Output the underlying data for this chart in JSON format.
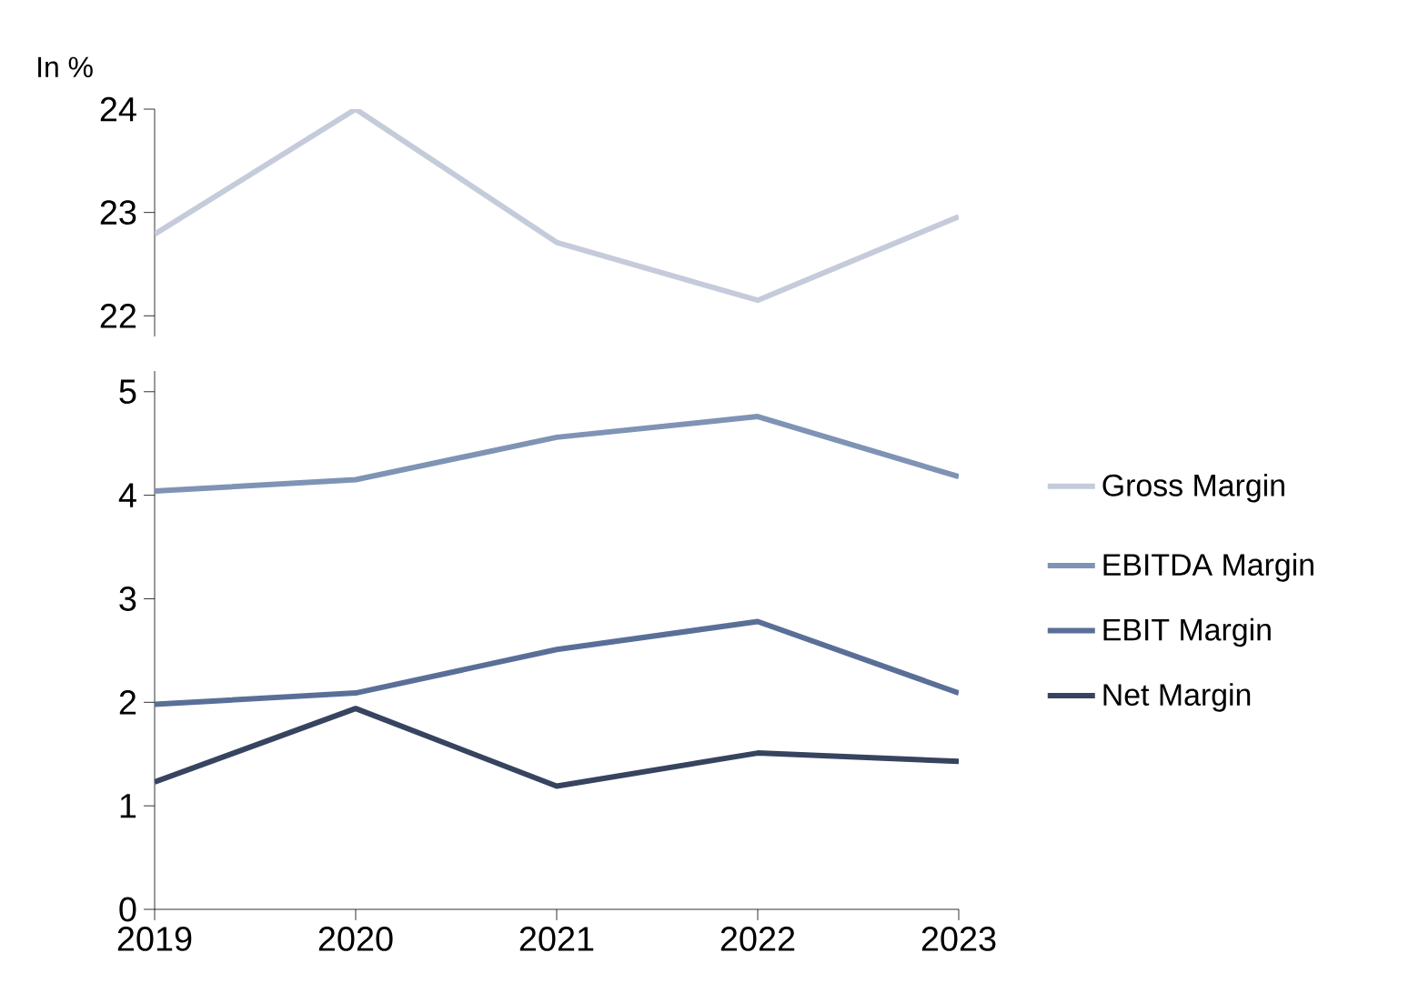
{
  "chart_data": [
    {
      "type": "line",
      "ylabel": "In %",
      "categories": [
        "2019",
        "2020",
        "2021",
        "2022",
        "2023"
      ],
      "ylim": [
        21.8,
        24
      ],
      "yticks": [
        22,
        23,
        24
      ],
      "tick_labels": "y",
      "legend": "right",
      "series": [
        {
          "name": "Gross Margin",
          "color": "#c5cbdb",
          "values": [
            22.79,
            24.0,
            22.71,
            22.15,
            22.96
          ]
        }
      ]
    },
    {
      "type": "line",
      "categories": [
        "2019",
        "2020",
        "2021",
        "2022",
        "2023"
      ],
      "ylim": [
        0,
        5.2
      ],
      "yticks": [
        0,
        1,
        2,
        3,
        4,
        5
      ],
      "legend": "right",
      "series": [
        {
          "name": "EBITDA Margin",
          "color": "#7f93b5",
          "values": [
            4.04,
            4.15,
            4.56,
            4.76,
            4.18
          ]
        },
        {
          "name": "EBIT Margin",
          "color": "#5a6f98",
          "values": [
            1.98,
            2.09,
            2.51,
            2.78,
            2.09
          ]
        },
        {
          "name": "Net Margin",
          "color": "#36445f",
          "values": [
            1.23,
            1.94,
            1.19,
            1.51,
            1.43
          ]
        }
      ]
    }
  ]
}
